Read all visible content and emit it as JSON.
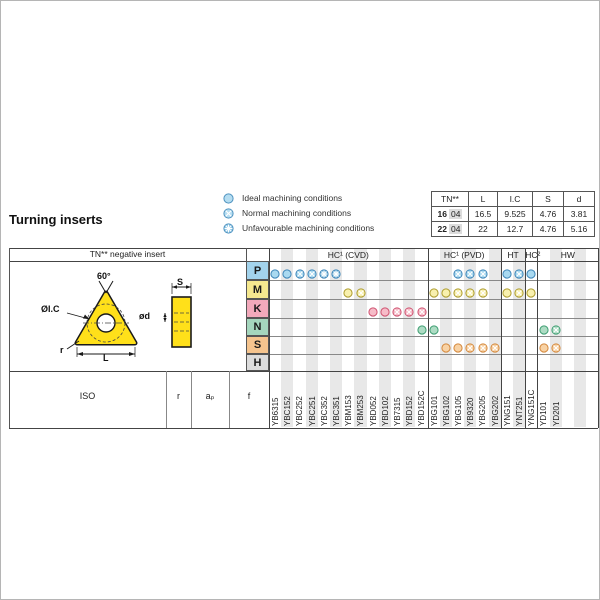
{
  "page": {
    "title": "Turning inserts"
  },
  "legend": {
    "items": [
      {
        "icon": "ideal-condition-icon",
        "state": "ideal",
        "label": "Ideal machining conditions"
      },
      {
        "icon": "normal-condition-icon",
        "state": "normal",
        "label": "Normal machining conditions"
      },
      {
        "icon": "unfavourable-condition-icon",
        "state": "unfavourable",
        "label": "Unfavourable machining conditions"
      }
    ],
    "icon_fill": "#b5ddf1",
    "icon_fill_unfav": "#8fc7e6",
    "icon_stroke": "#4f93c0"
  },
  "spec_table": {
    "headers": [
      "TN**",
      "L",
      "I.C",
      "S",
      "d"
    ],
    "rows": [
      {
        "tn_bold": "16",
        "tn_suffix": "04",
        "values": [
          "16.5",
          "9.525",
          "4.76",
          "3.81"
        ]
      },
      {
        "tn_bold": "22",
        "tn_suffix": "04",
        "values": [
          "22",
          "12.7",
          "4.76",
          "5.16"
        ]
      }
    ]
  },
  "insert_panel": {
    "header": "TN** negative insert",
    "labels": {
      "angle": "60°",
      "inscribed_circle": "ØI.C",
      "corner_radius": "r",
      "edge_length": "L",
      "thickness": "S",
      "hole_diameter": "ød"
    },
    "insert_color": "#ffe01a"
  },
  "matrix": {
    "groups": [
      {
        "id": "cvd",
        "label": "HC¹ (CVD)",
        "columns": [
          "YB6315",
          "YBC152",
          "YBC252",
          "YBC251",
          "YBC352",
          "YBC351",
          "YBM153",
          "YBM253",
          "YBD052",
          "YBD102",
          "YB7315",
          "YBD152",
          "YBD152C"
        ]
      },
      {
        "id": "pvd",
        "label": "HC¹ (PVD)",
        "columns": [
          "YBG101",
          "YBG102",
          "YBG105",
          "YB9320",
          "YBG205",
          "YBG202"
        ]
      },
      {
        "id": "ht",
        "label": "HT",
        "columns": [
          "YNG151",
          "YNT251"
        ]
      },
      {
        "id": "hc2",
        "label": "HC²",
        "columns": [
          "YNG151C"
        ]
      },
      {
        "id": "hw",
        "label": "HW",
        "columns": [
          "YD101",
          "YD201",
          "",
          "",
          ""
        ]
      }
    ],
    "rows": [
      {
        "label": "P",
        "color": "#a3d3ec",
        "circle": {
          "fill": "#a9d9f0",
          "fill_unfav": "#84bfe0",
          "stroke": "#3d85b8"
        },
        "cells": {
          "YB6315": "ideal",
          "YBC152": "ideal",
          "YBC252": "normal",
          "YBC251": "normal",
          "YBC352": "unfavourable",
          "YBC351": "unfavourable",
          "YBG105": "normal",
          "YB9320": "normal",
          "YBG205": "normal",
          "YNG151": "ideal",
          "YNT251": "normal",
          "YNG151C": "ideal"
        }
      },
      {
        "label": "M",
        "color": "#f5e88f",
        "circle": {
          "fill": "#f8f0ae",
          "fill_unfav": "#ecd97a",
          "stroke": "#ad9c2d"
        },
        "cells": {
          "YBM153": "ideal",
          "YBM253": "normal",
          "YBG101": "ideal",
          "YBG102": "ideal",
          "YBG105": "normal",
          "YB9320": "normal",
          "YBG205": "normal",
          "YNG151": "ideal",
          "YNT251": "normal",
          "YNG151C": "ideal"
        }
      },
      {
        "label": "K",
        "color": "#f2a9bb",
        "circle": {
          "fill": "#f6bcc8",
          "fill_unfav": "#ee96ab",
          "stroke": "#cf5270"
        },
        "cells": {
          "YBD052": "ideal",
          "YBD102": "ideal",
          "YB7315": "normal",
          "YBD152": "normal",
          "YBD152C": "normal"
        }
      },
      {
        "label": "N",
        "color": "#a5d6bd",
        "circle": {
          "fill": "#aedcc4",
          "fill_unfav": "#8cc7ab",
          "stroke": "#3f9e72"
        },
        "cells": {
          "YBD152C": "ideal",
          "YBG101": "ideal",
          "YD101": "ideal",
          "YD201": "normal"
        }
      },
      {
        "label": "S",
        "color": "#f5c48e",
        "circle": {
          "fill": "#f8d2a4",
          "fill_unfav": "#efb87e",
          "stroke": "#d4883c"
        },
        "cells": {
          "YBG102": "ideal",
          "YBG105": "ideal",
          "YB9320": "normal",
          "YBG205": "normal",
          "YBG202": "normal",
          "YD101": "ideal",
          "YD201": "normal"
        }
      },
      {
        "label": "H",
        "color": "#dcdcdc",
        "circle": {
          "fill": "#e3e3e3",
          "fill_unfav": "#cccccc",
          "stroke": "#8a8a8a"
        },
        "cells": {}
      }
    ]
  },
  "bottom_headers": {
    "iso": "ISO",
    "r": "r",
    "ap": "aₚ",
    "f": "f"
  }
}
